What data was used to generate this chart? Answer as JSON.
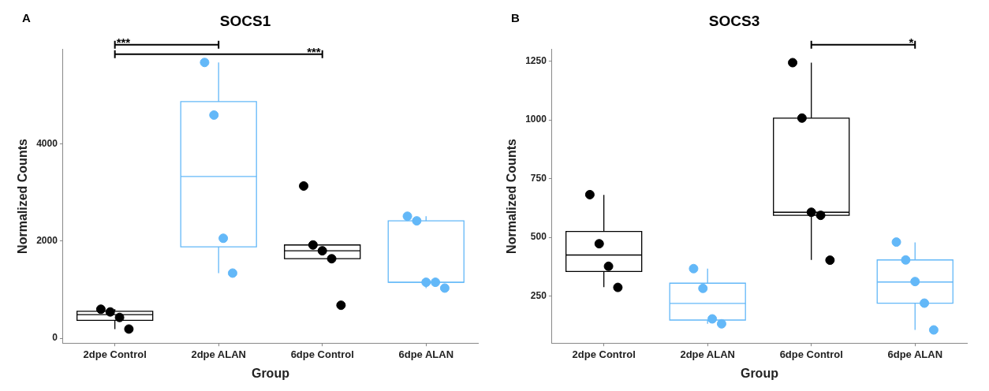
{
  "chart_data": [
    {
      "type": "box",
      "title": "SOCS1",
      "xlabel": "Group",
      "ylabel": "Normalized Counts",
      "categories": [
        "2dpe Control",
        "2dpe ALAN",
        "6dpe Control",
        "6dpe ALAN"
      ],
      "colors": [
        "#000000",
        "#63b8f8",
        "#000000",
        "#63b8f8"
      ],
      "boxes": [
        {
          "low": 189,
          "q1": 368,
          "median": 485,
          "q3": 556,
          "high": 598
        },
        {
          "low": 1342,
          "q1": 1884,
          "median": 3333,
          "q3": 4876,
          "high": 5683
        },
        {
          "low": 1638,
          "q1": 1638,
          "median": 1802,
          "q3": 1922,
          "high": 1922
        },
        {
          "low": 1033,
          "q1": 1153,
          "median": 1153,
          "q3": 2419,
          "high": 2514
        }
      ],
      "series": [
        {
          "type": "scatter",
          "x": [
            "2dpe Control",
            "2dpe Control",
            "2dpe Control",
            "2dpe Control",
            "2dpe ALAN",
            "2dpe ALAN",
            "2dpe ALAN",
            "2dpe ALAN",
            "6dpe Control",
            "6dpe Control",
            "6dpe Control",
            "6dpe Control",
            "6dpe Control",
            "6dpe ALAN",
            "6dpe ALAN",
            "6dpe ALAN",
            "6dpe ALAN",
            "6dpe ALAN"
          ],
          "values": [
            598,
            542,
            428,
            189,
            5683,
            4599,
            2060,
            1342,
            3137,
            1922,
            1802,
            1638,
            680,
            2514,
            2419,
            1153,
            1153,
            1033
          ],
          "colors": [
            "#000000",
            "#000000",
            "#000000",
            "#000000",
            "#63b8f8",
            "#63b8f8",
            "#63b8f8",
            "#63b8f8",
            "#000000",
            "#000000",
            "#000000",
            "#000000",
            "#000000",
            "#63b8f8",
            "#63b8f8",
            "#63b8f8",
            "#63b8f8",
            "#63b8f8"
          ]
        }
      ],
      "ylim": [
        -100,
        5950
      ],
      "yticks": [
        0,
        2000,
        4000
      ],
      "grid": false,
      "legend": false,
      "marker": "circle",
      "annotations": [
        "A",
        "***",
        "***"
      ]
    },
    {
      "type": "box",
      "title": "SOCS3",
      "xlabel": "Group",
      "ylabel": "Normalized Counts",
      "categories": [
        "2dpe Control",
        "2dpe ALAN",
        "6dpe Control",
        "6dpe ALAN"
      ],
      "colors": [
        "#000000",
        "#63b8f8",
        "#000000",
        "#63b8f8"
      ],
      "boxes": [
        {
          "low": 288,
          "q1": 355,
          "median": 425,
          "q3": 525,
          "high": 681
        },
        {
          "low": 132,
          "q1": 148,
          "median": 219,
          "q3": 305,
          "high": 367
        },
        {
          "low": 404,
          "q1": 594,
          "median": 607,
          "q3": 1008,
          "high": 1244
        },
        {
          "low": 106,
          "q1": 220,
          "median": 310,
          "q3": 404,
          "high": 479
        }
      ],
      "series": [
        {
          "type": "scatter",
          "x": [
            "2dpe Control",
            "2dpe Control",
            "2dpe Control",
            "2dpe Control",
            "2dpe ALAN",
            "2dpe ALAN",
            "2dpe ALAN",
            "2dpe ALAN",
            "6dpe Control",
            "6dpe Control",
            "6dpe Control",
            "6dpe Control",
            "6dpe Control",
            "6dpe ALAN",
            "6dpe ALAN",
            "6dpe ALAN",
            "6dpe ALAN",
            "6dpe ALAN"
          ],
          "values": [
            682,
            473,
            377,
            287,
            367,
            283,
            153,
            132,
            1244,
            1008,
            607,
            594,
            403,
            480,
            404,
            312,
            220,
            106
          ],
          "colors": [
            "#000000",
            "#000000",
            "#000000",
            "#000000",
            "#63b8f8",
            "#63b8f8",
            "#63b8f8",
            "#63b8f8",
            "#000000",
            "#000000",
            "#000000",
            "#000000",
            "#000000",
            "#63b8f8",
            "#63b8f8",
            "#63b8f8",
            "#63b8f8",
            "#63b8f8"
          ]
        }
      ],
      "ylim": [
        50,
        1300
      ],
      "yticks": [
        250,
        500,
        750,
        1000,
        1250
      ],
      "grid": false,
      "legend": false,
      "marker": "circle",
      "annotations": [
        "B",
        "*"
      ]
    }
  ]
}
